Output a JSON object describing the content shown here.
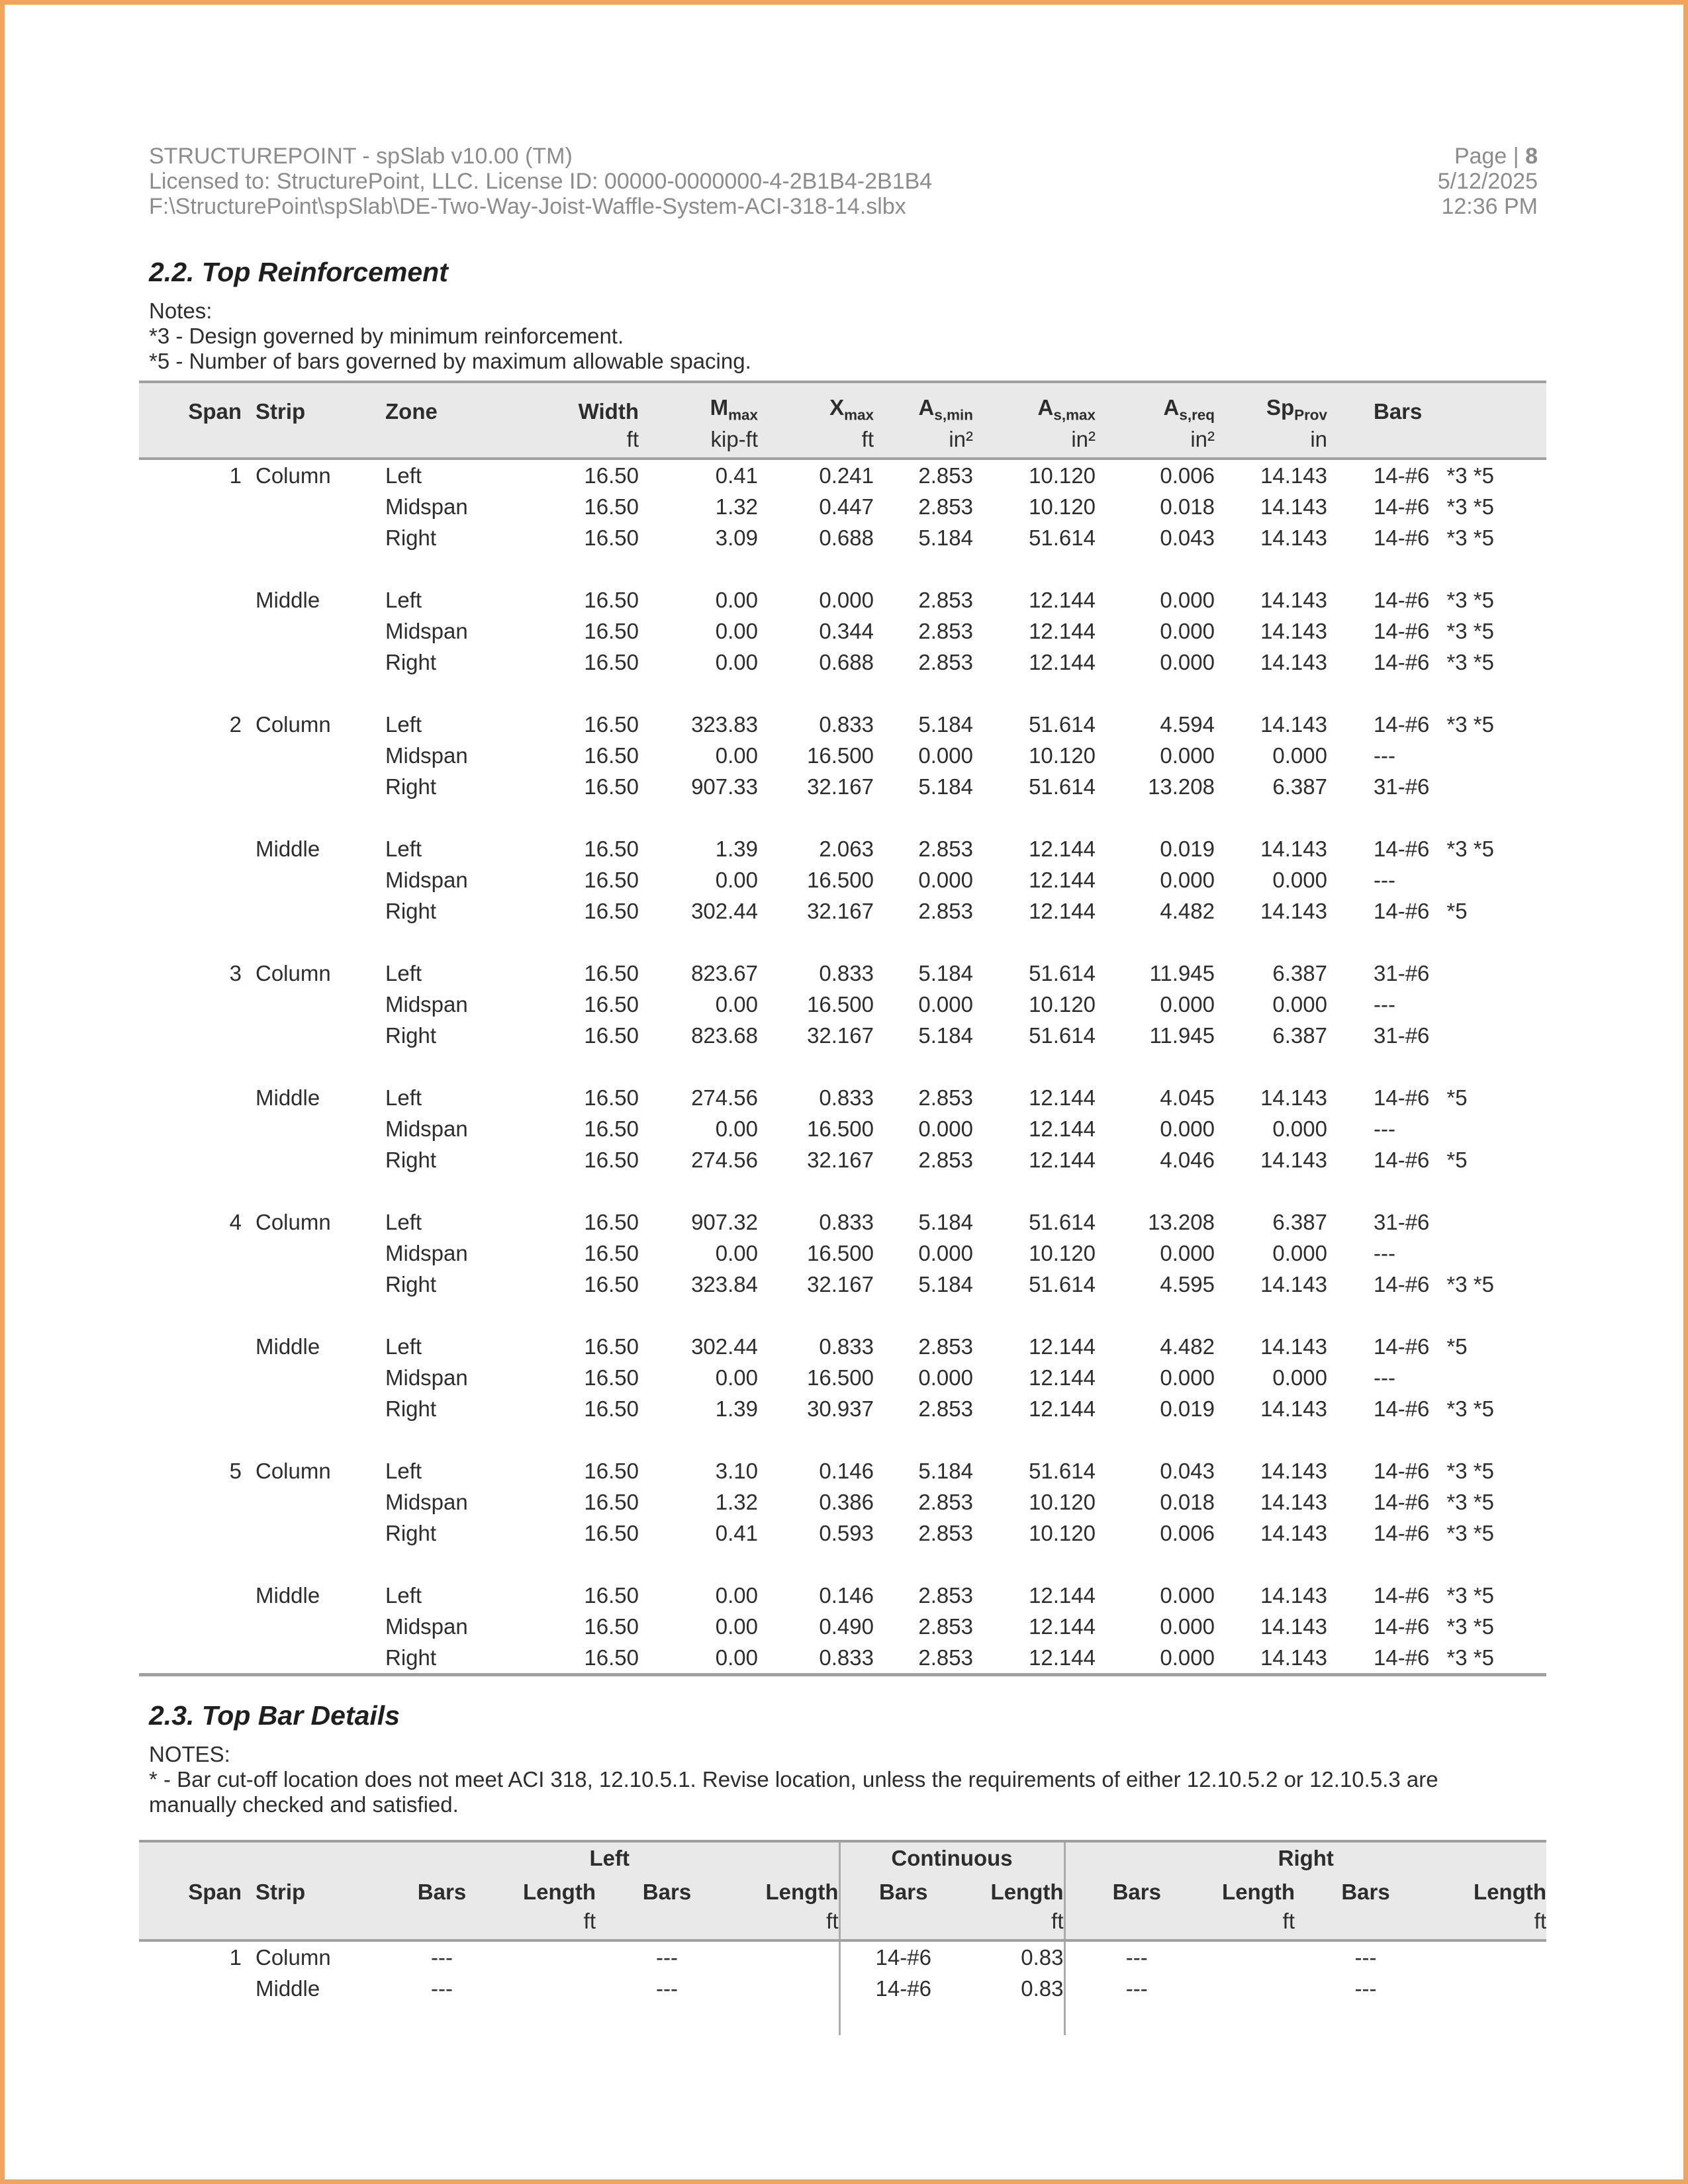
{
  "header": {
    "app_line": "STRUCTUREPOINT - spSlab v10.00 (TM)",
    "license_line": "Licensed to: StructurePoint, LLC. License ID: 00000-0000000-4-2B1B4-2B1B4",
    "file_line": "F:\\StructurePoint\\spSlab\\DE-Two-Way-Joist-Waffle-System-ACI-318-14.slbx",
    "page_prefix": "Page |",
    "page_number": "8",
    "date": "5/12/2025",
    "time": "12:36 PM"
  },
  "colors": {
    "page_border": "#F1A45A",
    "table_header_bg": "#E9E9E9",
    "rule_gray": "#A0A0A0",
    "header_text": "#8C8C8C"
  },
  "top_reinforcement": {
    "title": "2.2. Top Reinforcement",
    "notes_label": "Notes:",
    "notes": [
      "*3 - Design governed by minimum reinforcement.",
      "*5 - Number of bars governed by maximum allowable spacing."
    ],
    "table": {
      "headers": {
        "span": "Span",
        "strip": "Strip",
        "zone": "Zone",
        "width": "Width",
        "mmax": {
          "main": "M",
          "sub": "max"
        },
        "xmax": {
          "main": "X",
          "sub": "max"
        },
        "asmin": {
          "main": "A",
          "sub": "s,min"
        },
        "asmax": {
          "main": "A",
          "sub": "s,max"
        },
        "asreq": {
          "main": "A",
          "sub": "s,req"
        },
        "spprov": {
          "main": "Sp",
          "sub": "Prov"
        },
        "bars": "Bars"
      },
      "units": {
        "width": "ft",
        "mmax": "kip-ft",
        "xmax": "ft",
        "asmin": "in²",
        "asmax": "in²",
        "asreq": "in²",
        "spprov": "in"
      },
      "rows": [
        {
          "span": "1",
          "strip": "Column",
          "zone": "Left",
          "width": "16.50",
          "mmax": "0.41",
          "xmax": "0.241",
          "asmin": "2.853",
          "asmax": "10.120",
          "asreq": "0.006",
          "spprov": "14.143",
          "bars": "14-#6",
          "note": "*3 *5"
        },
        {
          "span": "",
          "strip": "",
          "zone": "Midspan",
          "width": "16.50",
          "mmax": "1.32",
          "xmax": "0.447",
          "asmin": "2.853",
          "asmax": "10.120",
          "asreq": "0.018",
          "spprov": "14.143",
          "bars": "14-#6",
          "note": "*3 *5"
        },
        {
          "span": "",
          "strip": "",
          "zone": "Right",
          "width": "16.50",
          "mmax": "3.09",
          "xmax": "0.688",
          "asmin": "5.184",
          "asmax": "51.614",
          "asreq": "0.043",
          "spprov": "14.143",
          "bars": "14-#6",
          "note": "*3 *5"
        },
        {
          "gap": true
        },
        {
          "span": "",
          "strip": "Middle",
          "zone": "Left",
          "width": "16.50",
          "mmax": "0.00",
          "xmax": "0.000",
          "asmin": "2.853",
          "asmax": "12.144",
          "asreq": "0.000",
          "spprov": "14.143",
          "bars": "14-#6",
          "note": "*3 *5"
        },
        {
          "span": "",
          "strip": "",
          "zone": "Midspan",
          "width": "16.50",
          "mmax": "0.00",
          "xmax": "0.344",
          "asmin": "2.853",
          "asmax": "12.144",
          "asreq": "0.000",
          "spprov": "14.143",
          "bars": "14-#6",
          "note": "*3 *5"
        },
        {
          "span": "",
          "strip": "",
          "zone": "Right",
          "width": "16.50",
          "mmax": "0.00",
          "xmax": "0.688",
          "asmin": "2.853",
          "asmax": "12.144",
          "asreq": "0.000",
          "spprov": "14.143",
          "bars": "14-#6",
          "note": "*3 *5"
        },
        {
          "gap": true
        },
        {
          "span": "2",
          "strip": "Column",
          "zone": "Left",
          "width": "16.50",
          "mmax": "323.83",
          "xmax": "0.833",
          "asmin": "5.184",
          "asmax": "51.614",
          "asreq": "4.594",
          "spprov": "14.143",
          "bars": "14-#6",
          "note": "*3 *5"
        },
        {
          "span": "",
          "strip": "",
          "zone": "Midspan",
          "width": "16.50",
          "mmax": "0.00",
          "xmax": "16.500",
          "asmin": "0.000",
          "asmax": "10.120",
          "asreq": "0.000",
          "spprov": "0.000",
          "bars": "---",
          "note": ""
        },
        {
          "span": "",
          "strip": "",
          "zone": "Right",
          "width": "16.50",
          "mmax": "907.33",
          "xmax": "32.167",
          "asmin": "5.184",
          "asmax": "51.614",
          "asreq": "13.208",
          "spprov": "6.387",
          "bars": "31-#6",
          "note": ""
        },
        {
          "gap": true
        },
        {
          "span": "",
          "strip": "Middle",
          "zone": "Left",
          "width": "16.50",
          "mmax": "1.39",
          "xmax": "2.063",
          "asmin": "2.853",
          "asmax": "12.144",
          "asreq": "0.019",
          "spprov": "14.143",
          "bars": "14-#6",
          "note": "*3 *5"
        },
        {
          "span": "",
          "strip": "",
          "zone": "Midspan",
          "width": "16.50",
          "mmax": "0.00",
          "xmax": "16.500",
          "asmin": "0.000",
          "asmax": "12.144",
          "asreq": "0.000",
          "spprov": "0.000",
          "bars": "---",
          "note": ""
        },
        {
          "span": "",
          "strip": "",
          "zone": "Right",
          "width": "16.50",
          "mmax": "302.44",
          "xmax": "32.167",
          "asmin": "2.853",
          "asmax": "12.144",
          "asreq": "4.482",
          "spprov": "14.143",
          "bars": "14-#6",
          "note": "*5"
        },
        {
          "gap": true
        },
        {
          "span": "3",
          "strip": "Column",
          "zone": "Left",
          "width": "16.50",
          "mmax": "823.67",
          "xmax": "0.833",
          "asmin": "5.184",
          "asmax": "51.614",
          "asreq": "11.945",
          "spprov": "6.387",
          "bars": "31-#6",
          "note": ""
        },
        {
          "span": "",
          "strip": "",
          "zone": "Midspan",
          "width": "16.50",
          "mmax": "0.00",
          "xmax": "16.500",
          "asmin": "0.000",
          "asmax": "10.120",
          "asreq": "0.000",
          "spprov": "0.000",
          "bars": "---",
          "note": ""
        },
        {
          "span": "",
          "strip": "",
          "zone": "Right",
          "width": "16.50",
          "mmax": "823.68",
          "xmax": "32.167",
          "asmin": "5.184",
          "asmax": "51.614",
          "asreq": "11.945",
          "spprov": "6.387",
          "bars": "31-#6",
          "note": ""
        },
        {
          "gap": true
        },
        {
          "span": "",
          "strip": "Middle",
          "zone": "Left",
          "width": "16.50",
          "mmax": "274.56",
          "xmax": "0.833",
          "asmin": "2.853",
          "asmax": "12.144",
          "asreq": "4.045",
          "spprov": "14.143",
          "bars": "14-#6",
          "note": "*5"
        },
        {
          "span": "",
          "strip": "",
          "zone": "Midspan",
          "width": "16.50",
          "mmax": "0.00",
          "xmax": "16.500",
          "asmin": "0.000",
          "asmax": "12.144",
          "asreq": "0.000",
          "spprov": "0.000",
          "bars": "---",
          "note": ""
        },
        {
          "span": "",
          "strip": "",
          "zone": "Right",
          "width": "16.50",
          "mmax": "274.56",
          "xmax": "32.167",
          "asmin": "2.853",
          "asmax": "12.144",
          "asreq": "4.046",
          "spprov": "14.143",
          "bars": "14-#6",
          "note": "*5"
        },
        {
          "gap": true
        },
        {
          "span": "4",
          "strip": "Column",
          "zone": "Left",
          "width": "16.50",
          "mmax": "907.32",
          "xmax": "0.833",
          "asmin": "5.184",
          "asmax": "51.614",
          "asreq": "13.208",
          "spprov": "6.387",
          "bars": "31-#6",
          "note": ""
        },
        {
          "span": "",
          "strip": "",
          "zone": "Midspan",
          "width": "16.50",
          "mmax": "0.00",
          "xmax": "16.500",
          "asmin": "0.000",
          "asmax": "10.120",
          "asreq": "0.000",
          "spprov": "0.000",
          "bars": "---",
          "note": ""
        },
        {
          "span": "",
          "strip": "",
          "zone": "Right",
          "width": "16.50",
          "mmax": "323.84",
          "xmax": "32.167",
          "asmin": "5.184",
          "asmax": "51.614",
          "asreq": "4.595",
          "spprov": "14.143",
          "bars": "14-#6",
          "note": "*3 *5"
        },
        {
          "gap": true
        },
        {
          "span": "",
          "strip": "Middle",
          "zone": "Left",
          "width": "16.50",
          "mmax": "302.44",
          "xmax": "0.833",
          "asmin": "2.853",
          "asmax": "12.144",
          "asreq": "4.482",
          "spprov": "14.143",
          "bars": "14-#6",
          "note": "*5"
        },
        {
          "span": "",
          "strip": "",
          "zone": "Midspan",
          "width": "16.50",
          "mmax": "0.00",
          "xmax": "16.500",
          "asmin": "0.000",
          "asmax": "12.144",
          "asreq": "0.000",
          "spprov": "0.000",
          "bars": "---",
          "note": ""
        },
        {
          "span": "",
          "strip": "",
          "zone": "Right",
          "width": "16.50",
          "mmax": "1.39",
          "xmax": "30.937",
          "asmin": "2.853",
          "asmax": "12.144",
          "asreq": "0.019",
          "spprov": "14.143",
          "bars": "14-#6",
          "note": "*3 *5"
        },
        {
          "gap": true
        },
        {
          "span": "5",
          "strip": "Column",
          "zone": "Left",
          "width": "16.50",
          "mmax": "3.10",
          "xmax": "0.146",
          "asmin": "5.184",
          "asmax": "51.614",
          "asreq": "0.043",
          "spprov": "14.143",
          "bars": "14-#6",
          "note": "*3 *5"
        },
        {
          "span": "",
          "strip": "",
          "zone": "Midspan",
          "width": "16.50",
          "mmax": "1.32",
          "xmax": "0.386",
          "asmin": "2.853",
          "asmax": "10.120",
          "asreq": "0.018",
          "spprov": "14.143",
          "bars": "14-#6",
          "note": "*3 *5"
        },
        {
          "span": "",
          "strip": "",
          "zone": "Right",
          "width": "16.50",
          "mmax": "0.41",
          "xmax": "0.593",
          "asmin": "2.853",
          "asmax": "10.120",
          "asreq": "0.006",
          "spprov": "14.143",
          "bars": "14-#6",
          "note": "*3 *5"
        },
        {
          "gap": true
        },
        {
          "span": "",
          "strip": "Middle",
          "zone": "Left",
          "width": "16.50",
          "mmax": "0.00",
          "xmax": "0.146",
          "asmin": "2.853",
          "asmax": "12.144",
          "asreq": "0.000",
          "spprov": "14.143",
          "bars": "14-#6",
          "note": "*3 *5"
        },
        {
          "span": "",
          "strip": "",
          "zone": "Midspan",
          "width": "16.50",
          "mmax": "0.00",
          "xmax": "0.490",
          "asmin": "2.853",
          "asmax": "12.144",
          "asreq": "0.000",
          "spprov": "14.143",
          "bars": "14-#6",
          "note": "*3 *5"
        },
        {
          "span": "",
          "strip": "",
          "zone": "Right",
          "width": "16.50",
          "mmax": "0.00",
          "xmax": "0.833",
          "asmin": "2.853",
          "asmax": "12.144",
          "asreq": "0.000",
          "spprov": "14.143",
          "bars": "14-#6",
          "note": "*3 *5"
        }
      ]
    }
  },
  "top_bar_details": {
    "title": "2.3. Top Bar Details",
    "notes_label": "NOTES:",
    "note": "* - Bar cut-off location does not meet ACI 318, 12.10.5.1. Revise location, unless the requirements of either 12.10.5.2 or 12.10.5.3 are manually checked and satisfied.",
    "table": {
      "groups": {
        "left": "Left",
        "continuous": "Continuous",
        "right": "Right"
      },
      "headers": {
        "span": "Span",
        "strip": "Strip",
        "bars": "Bars",
        "length": "Length"
      },
      "unit_ft": "ft",
      "rows": [
        {
          "span": "1",
          "strip": "Column",
          "lb1": "---",
          "ll1": "",
          "lb2": "---",
          "ll2": "",
          "cb": "14-#6",
          "cl": "0.83",
          "rb1": "---",
          "rl1": "",
          "rb2": "---",
          "rl2": ""
        },
        {
          "span": "",
          "strip": "Middle",
          "lb1": "---",
          "ll1": "",
          "lb2": "---",
          "ll2": "",
          "cb": "14-#6",
          "cl": "0.83",
          "rb1": "---",
          "rl1": "",
          "rb2": "---",
          "rl2": ""
        },
        {
          "span": "",
          "strip": "",
          "lb1": "",
          "ll1": "",
          "lb2": "",
          "ll2": "",
          "cb": "",
          "cl": "",
          "rb1": "",
          "rl1": "",
          "rb2": "",
          "rl2": ""
        }
      ]
    }
  }
}
